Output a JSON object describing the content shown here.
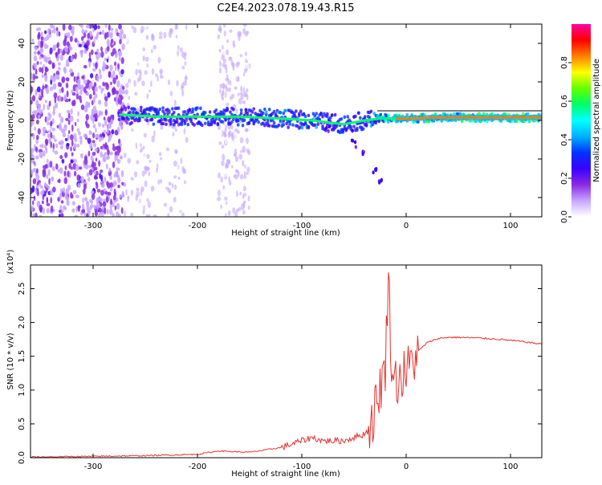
{
  "title": "C2E4.2023.078.19.43.R15",
  "chart_data": [
    {
      "type": "heatmap",
      "xlabel": "Height of straight line (km)",
      "ylabel": "Frequency (Hz)",
      "xlim": [
        -360,
        130
      ],
      "ylim": [
        -50,
        50
      ],
      "xticks": [
        -300,
        -200,
        -100,
        0,
        100
      ],
      "yticks": [
        -40,
        -20,
        0,
        20,
        40
      ],
      "colorbar": {
        "label": "Normalized spectral amplitude",
        "range": [
          0.0,
          1.0
        ],
        "ticks": [
          "0.0",
          "0.2",
          "0.4",
          "0.6",
          "0.8"
        ],
        "colors": [
          "#ffffff",
          "#c7a6ff",
          "#8a2be2",
          "#3a00ff",
          "#0033ff",
          "#00b0ff",
          "#00ffff",
          "#00ff66",
          "#66ff00",
          "#ffff00",
          "#ff8000",
          "#ff0000",
          "#ff00a0"
        ]
      },
      "regions": [
        {
          "x": [
            -360,
            -270
          ],
          "f": [
            -50,
            50
          ],
          "level": "noise-strong"
        },
        {
          "x": [
            -270,
            -210
          ],
          "f": [
            -50,
            50
          ],
          "level": "noise-faint"
        },
        {
          "x": [
            -180,
            -150
          ],
          "f": [
            -50,
            50
          ],
          "level": "noise-faint"
        }
      ],
      "ridge": [
        {
          "x": -275,
          "f": 3,
          "amp": 0.35
        },
        {
          "x": -240,
          "f": 2,
          "amp": 0.45
        },
        {
          "x": -200,
          "f": 2,
          "amp": 0.45
        },
        {
          "x": -160,
          "f": 2,
          "amp": 0.45
        },
        {
          "x": -120,
          "f": 1,
          "amp": 0.5
        },
        {
          "x": -90,
          "f": 0,
          "amp": 0.5
        },
        {
          "x": -60,
          "f": -2,
          "amp": 0.45
        },
        {
          "x": -40,
          "f": 0,
          "amp": 0.45
        },
        {
          "x": -25,
          "f": 1,
          "amp": 0.6
        },
        {
          "x": -10,
          "f": 1,
          "amp": 0.75
        },
        {
          "x": 0,
          "f": 1,
          "amp": 0.75
        },
        {
          "x": 30,
          "f": 1.5,
          "amp": 0.75
        },
        {
          "x": 60,
          "f": 1.5,
          "amp": 0.8
        },
        {
          "x": 90,
          "f": 1.5,
          "amp": 0.85
        },
        {
          "x": 130,
          "f": 1.5,
          "amp": 0.85
        }
      ],
      "branch": [
        {
          "x": -75,
          "f": -5
        },
        {
          "x": -50,
          "f": -12
        },
        {
          "x": -40,
          "f": -18
        },
        {
          "x": -30,
          "f": -26
        },
        {
          "x": -25,
          "f": -32
        }
      ]
    },
    {
      "type": "line",
      "xlabel": "Height of straight line (km)",
      "ylabel": "SNR (10 * v/v)",
      "y_multiplier": "(x10⁴)",
      "xlim": [
        -360,
        130
      ],
      "ylim": [
        0,
        2.85
      ],
      "xticks": [
        -300,
        -200,
        -100,
        0,
        100
      ],
      "yticks": [
        "0.0",
        "0.5",
        "1.0",
        "1.5",
        "2.0",
        "2.5"
      ],
      "series": [
        {
          "color": "#e8302b",
          "x": [
            -360,
            -300,
            -250,
            -200,
            -180,
            -150,
            -120,
            -100,
            -90,
            -80,
            -60,
            -50,
            -40,
            -35,
            -30,
            -25,
            -20,
            -17,
            -15,
            -12,
            -8,
            -5,
            0,
            5,
            10,
            20,
            30,
            40,
            50,
            70,
            90,
            110,
            130
          ],
          "y": [
            0.01,
            0.02,
            0.03,
            0.05,
            0.1,
            0.08,
            0.15,
            0.25,
            0.3,
            0.25,
            0.25,
            0.3,
            0.35,
            0.45,
            0.7,
            1.05,
            1.3,
            2.85,
            1.7,
            1.15,
            1.15,
            1.2,
            1.25,
            1.4,
            1.55,
            1.7,
            1.76,
            1.78,
            1.78,
            1.77,
            1.75,
            1.72,
            1.68
          ]
        }
      ]
    }
  ]
}
